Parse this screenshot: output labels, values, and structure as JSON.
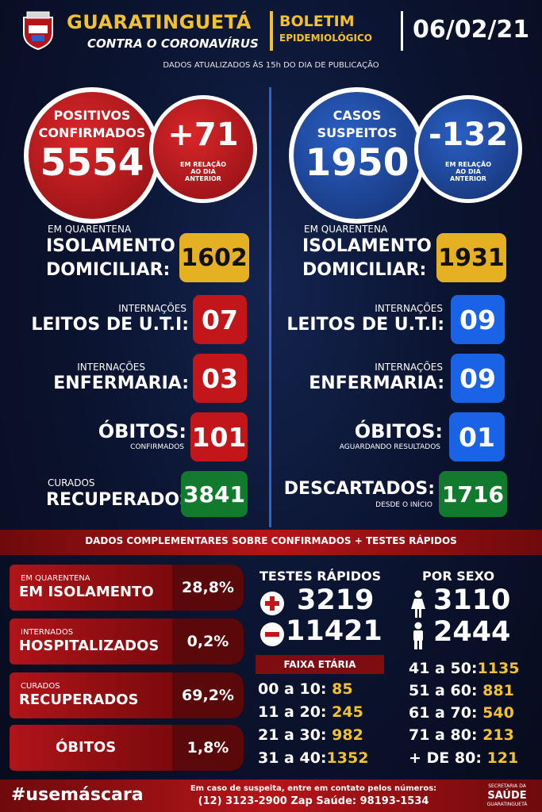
{
  "header": {
    "city": "GUARATINGUETÁ",
    "slogan": "CONTRA O CORONAVÍRUS",
    "bulletin_line1": "BOLETIM",
    "bulletin_line2": "EPIDEMIOLÓGICO",
    "date": "06/02/21",
    "updated_note": "DADOS ATUALIZADOS ÀS 15h DO DIA DE PUBLICAÇÃO"
  },
  "left": {
    "circle_label1": "POSITIVOS",
    "circle_label2": "CONFIRMADOS",
    "circle_value": "5554",
    "delta_value": "+71",
    "delta_note1": "EM RELAÇÃO",
    "delta_note2": "AO DIA",
    "delta_note3": "ANTERIOR",
    "quarantine_small": "EM QUARENTENA",
    "quarantine_line1": "ISOLAMENTO",
    "quarantine_line2": "DOMICILIAR:",
    "quarantine_value": "1602",
    "uti_small": "INTERNAÇÕES",
    "uti_label": "LEITOS DE U.T.I:",
    "uti_value": "07",
    "enf_small": "INTERNAÇÕES",
    "enf_label": "ENFERMARIA:",
    "enf_value": "03",
    "obitos_label": "ÓBITOS:",
    "obitos_sub": "CONFIRMADOS",
    "obitos_value": "101",
    "curados_small": "CURADOS",
    "curados_label": "RECUPERADOS:",
    "curados_value": "3841"
  },
  "right": {
    "circle_label1": "CASOS",
    "circle_label2": "SUSPEITOS",
    "circle_value": "1950",
    "delta_value": "-132",
    "delta_note1": "EM RELAÇÃO",
    "delta_note2": "AO DIA",
    "delta_note3": "ANTERIOR",
    "quarantine_small": "EM QUARENTENA",
    "quarantine_line1": "ISOLAMENTO",
    "quarantine_line2": "DOMICILIAR:",
    "quarantine_value": "1931",
    "uti_small": "INTERNAÇÕES",
    "uti_label": "LEITOS DE U.T.I:",
    "uti_value": "09",
    "enf_small": "INTERNAÇÕES",
    "enf_label": "ENFERMARIA:",
    "enf_value": "09",
    "obitos_label": "ÓBITOS:",
    "obitos_sub": "AGUARDANDO RESULTADOS",
    "obitos_value": "01",
    "descartados_label": "DESCARTADOS:",
    "descartados_sub": "DESDE O INÍCIO",
    "descartados_value": "1716"
  },
  "complementary": {
    "title": "DADOS COMPLEMENTARES SOBRE CONFIRMADOS + TESTES RÁPIDOS",
    "rows": [
      {
        "small": "EM QUARENTENA",
        "big": "EM ISOLAMENTO",
        "value": "28,8%"
      },
      {
        "small": "INTERNADOS",
        "big": "HOSPITALIZADOS",
        "value": "0,2%"
      },
      {
        "small": "CURADOS",
        "big": "RECUPERADOS",
        "value": "69,2%"
      },
      {
        "small": "",
        "big": "ÓBITOS",
        "value": "1,8%"
      }
    ],
    "rapid_tests_title": "TESTES RÁPIDOS",
    "rapid_positive": "3219",
    "rapid_negative": "11421",
    "by_sex_title": "POR SEXO",
    "female": "3110",
    "male": "2444",
    "age_title": "FAIXA ETÁRIA",
    "ages_left": [
      {
        "range": "00 a 10:",
        "value": "85"
      },
      {
        "range": "11 a 20:",
        "value": "245"
      },
      {
        "range": "21 a 30:",
        "value": "982"
      },
      {
        "range": "31 a 40:",
        "value": "1352"
      }
    ],
    "ages_right": [
      {
        "range": "41 a 50:",
        "value": "1135"
      },
      {
        "range": "51 a 60:",
        "value": "881"
      },
      {
        "range": "61 a 70:",
        "value": "540"
      },
      {
        "range": "71 a 80:",
        "value": "213"
      },
      {
        "range": "+ DE 80:",
        "value": "121"
      }
    ]
  },
  "footer": {
    "hashtag": "#usemáscara",
    "contact_line1": "Em caso de suspeita, entre em contato pelos números:",
    "contact_line2": "(12) 3123-2900 Zap Saúde: 98193-1534",
    "sec_line1": "SECRETARIA DA",
    "sec_line2": "SAÚDE",
    "sec_line3": "GUARATINGUETÁ"
  },
  "colors": {
    "gold": "#e5b022",
    "red": "#c3161b",
    "blue": "#1b63e6",
    "green": "#127a2c",
    "background": "#0b1431"
  }
}
